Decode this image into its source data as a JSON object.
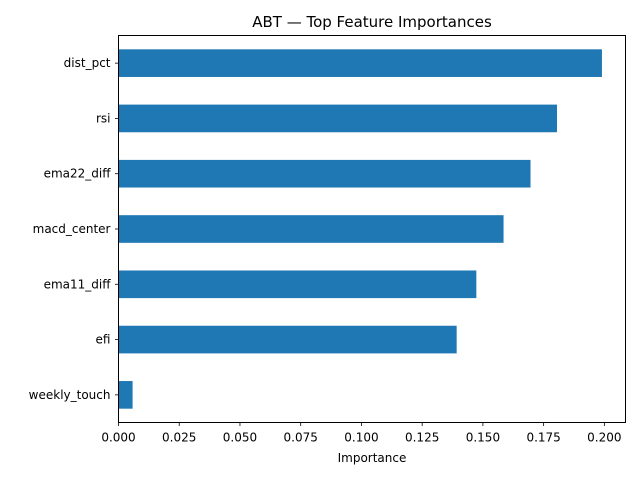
{
  "chart_data": {
    "type": "bar",
    "orientation": "horizontal",
    "title": "ABT — Top Feature Importances",
    "xlabel": "Importance",
    "ylabel": "",
    "categories": [
      "dist_pct",
      "rsi",
      "ema22_diff",
      "macd_center",
      "ema11_diff",
      "efi",
      "weekly_touch"
    ],
    "values": [
      0.199,
      0.1805,
      0.1696,
      0.1585,
      0.1473,
      0.1392,
      0.0058
    ],
    "xlim": [
      0,
      0.2087
    ],
    "xticks": [
      "0.000",
      "0.025",
      "0.050",
      "0.075",
      "0.100",
      "0.125",
      "0.150",
      "0.175",
      "0.200"
    ],
    "grid": false,
    "legend": false,
    "colors": {
      "bar": "#1f77b4",
      "axis": "#000000",
      "text": "#000000"
    }
  }
}
